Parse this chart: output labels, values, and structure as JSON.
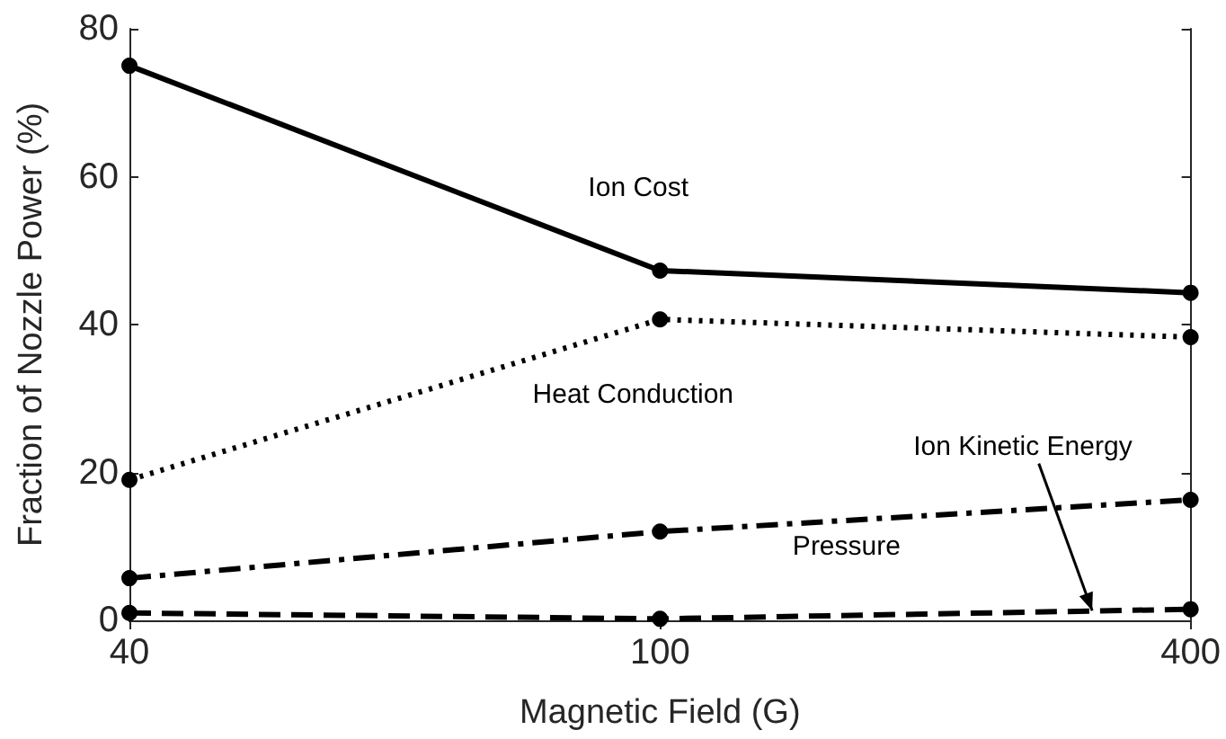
{
  "chart_data": {
    "type": "line",
    "xlabel": "Magnetic Field (G)",
    "ylabel": "Fraction of Nozzle Power (%)",
    "categories": [
      "40",
      "100",
      "400"
    ],
    "series": [
      {
        "name": "Ion Cost",
        "color": "#000000",
        "values": [
          75,
          47.3,
          44.3
        ],
        "line_style": "solid"
      },
      {
        "name": "Heat Conduction",
        "color": "#000000",
        "values": [
          19,
          40.7,
          38.3
        ],
        "line_style": "dotted"
      },
      {
        "name": "Pressure",
        "color": "#000000",
        "values": [
          5.7,
          12,
          16.3
        ],
        "line_style": "dashdot"
      },
      {
        "name": "Ion Kinetic Energy",
        "color": "#000000",
        "values": [
          1,
          0.2,
          1.5
        ],
        "line_style": "dashed"
      }
    ],
    "ylim": [
      0,
      80
    ],
    "yticks": [
      0,
      20,
      40,
      60,
      80
    ],
    "grid": false,
    "legend": false,
    "marker": "circle"
  }
}
